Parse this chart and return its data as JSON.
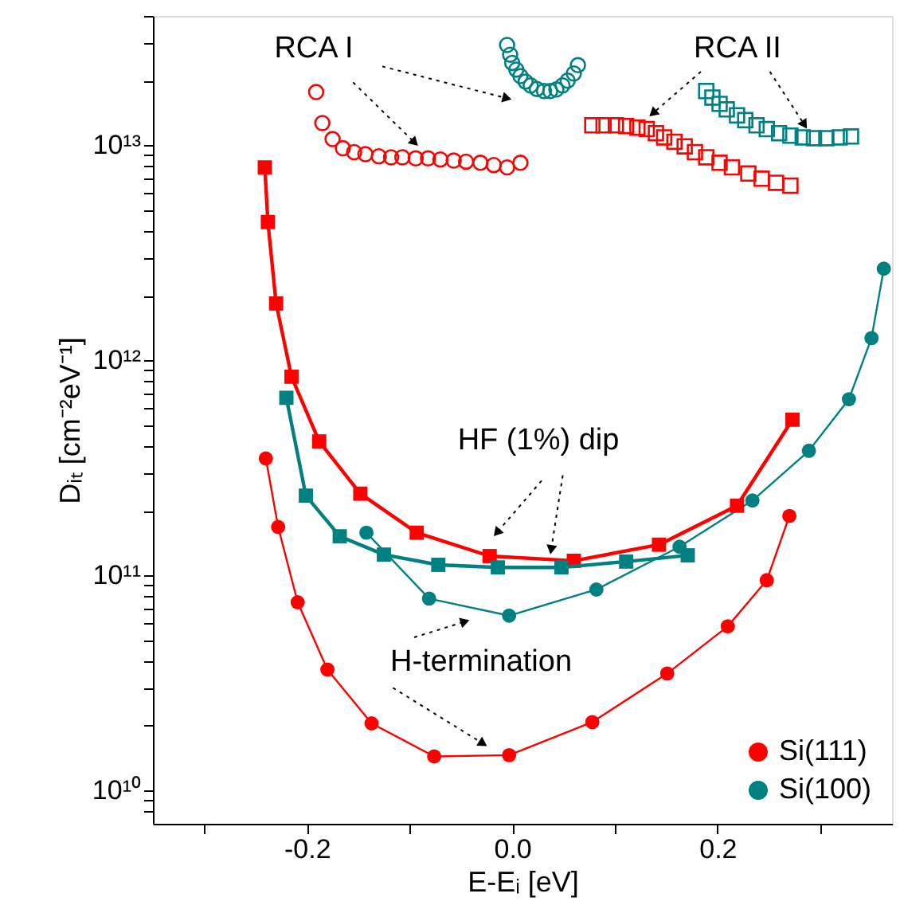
{
  "chart_data": {
    "type": "line",
    "xlabel": "E-Eᵢ [eV]",
    "ylabel": "Dᵢₜ [cm⁻²eV⁻¹]",
    "log": "y",
    "xlim": [
      -0.35,
      0.37
    ],
    "ylim": [
      7000000000.0,
      40000000000000.0
    ],
    "xticks": [
      {
        "value": -0.3,
        "label": null
      },
      -0.2,
      {
        "value": -0.1,
        "label": null
      },
      {
        "value": 0.0,
        "label": "0.0"
      },
      {
        "value": 0.1,
        "label": null
      },
      0.2,
      {
        "value": 0.3,
        "label": null
      }
    ],
    "yticks": [
      {
        "value": 8000000000.0,
        "label": null
      },
      {
        "value": 9000000000.0,
        "label": null
      },
      {
        "value": 10000000000.0,
        "label": "10¹⁰"
      },
      {
        "value": 20000000000.0,
        "label": null
      },
      {
        "value": 30000000000.0,
        "label": null
      },
      {
        "value": 40000000000.0,
        "label": null
      },
      {
        "value": 50000000000.0,
        "label": null
      },
      {
        "value": 60000000000.0,
        "label": null
      },
      {
        "value": 70000000000.0,
        "label": null
      },
      {
        "value": 80000000000.0,
        "label": null
      },
      {
        "value": 90000000000.0,
        "label": null
      },
      {
        "value": 100000000000.0,
        "label": "10¹¹"
      },
      {
        "value": 200000000000.0,
        "label": null
      },
      {
        "value": 300000000000.0,
        "label": null
      },
      {
        "value": 400000000000.0,
        "label": null
      },
      {
        "value": 500000000000.0,
        "label": null
      },
      {
        "value": 600000000000.0,
        "label": null
      },
      {
        "value": 700000000000.0,
        "label": null
      },
      {
        "value": 800000000000.0,
        "label": null
      },
      {
        "value": 900000000000.0,
        "label": null
      },
      {
        "value": 1000000000000.0,
        "label": "10¹²"
      },
      {
        "value": 2000000000000.0,
        "label": null
      },
      {
        "value": 3000000000000.0,
        "label": null
      },
      {
        "value": 4000000000000.0,
        "label": null
      },
      {
        "value": 5000000000000.0,
        "label": null
      },
      {
        "value": 6000000000000.0,
        "label": null
      },
      {
        "value": 7000000000000.0,
        "label": null
      },
      {
        "value": 8000000000000.0,
        "label": null
      },
      {
        "value": 9000000000000.0,
        "label": null
      },
      {
        "value": 10000000000000.0,
        "label": "10¹³"
      },
      {
        "value": 20000000000000.0,
        "label": null
      },
      {
        "value": 30000000000000.0,
        "label": null
      },
      {
        "value": 40000000000000.0,
        "label": null
      }
    ],
    "grid": false,
    "legend": "bottom right",
    "series": [
      {
        "name": "Si(111)",
        "type": "line",
        "marker": "circle",
        "color": "#ff0000",
        "x": [
          -0.24,
          -0.228,
          -0.209,
          -0.18,
          -0.137,
          -0.076,
          -0.003,
          0.078,
          0.151,
          0.21,
          0.248,
          0.27
        ],
        "values": [
          350000000000.0,
          168000000000.0,
          75000000000.0,
          36500000000.0,
          20500000000.0,
          14400000000.0,
          14600000000.0,
          20800000000.0,
          35000000000.0,
          58000000000.0,
          95000000000.0,
          189000000000.0
        ]
      },
      {
        "name": "Si(100)",
        "marker": "circle",
        "color": "#008080",
        "x": [
          -0.142,
          -0.081,
          -0.003,
          0.082,
          0.163,
          0.234,
          0.289,
          0.328,
          0.35,
          0.362
        ],
        "values": [
          158000000000.0,
          78000000000.0,
          65000000000.0,
          86000000000.0,
          136000000000.0,
          223000000000.0,
          380000000000.0,
          660000000000.0,
          1270000000000.0,
          2670000000000.0
        ]
      },
      {
        "marker": "square",
        "color": "#ff0000",
        "x": [
          -0.241,
          -0.238,
          -0.23,
          -0.215,
          -0.188,
          -0.148,
          -0.093,
          -0.022,
          0.06,
          0.143,
          0.219,
          0.273
        ],
        "values": [
          7900000000000.0,
          4400000000000.0,
          1840000000000.0,
          840000000000.0,
          420000000000.0,
          240000000000.0,
          158000000000.0,
          123000000000.0,
          117000000000.0,
          139000000000.0,
          211000000000.0,
          530000000000.0
        ]
      },
      {
        "marker": "square",
        "color": "#008080",
        "x": [
          -0.22,
          -0.201,
          -0.168,
          -0.125,
          -0.072,
          -0.014,
          0.048,
          0.111,
          0.171
        ],
        "values": [
          670000000000.0,
          235000000000.0,
          152000000000.0,
          125000000000.0,
          112000000000.0,
          109000000000.0,
          109000000000.0,
          116000000000.0,
          124000000000.0
        ]
      },
      {
        "type": "scatter",
        "marker": "circle",
        "color": "#ff0000",
        "x": [
          -0.191,
          -0.185,
          -0.175,
          -0.165,
          -0.154,
          -0.143,
          -0.13,
          -0.118,
          -0.107,
          -0.094,
          -0.082,
          -0.07,
          -0.057,
          -0.045,
          -0.031,
          -0.018,
          -0.005,
          0.008
        ],
        "values": [
          17700000000000.0,
          12700000000000.0,
          10700000000000.0,
          9700000000000.0,
          9300000000000.0,
          9100000000000.0,
          8900000000000.0,
          8800000000000.0,
          8800000000000.0,
          8700000000000.0,
          8700000000000.0,
          8600000000000.0,
          8500000000000.0,
          8400000000000.0,
          8300000000000.0,
          8100000000000.0,
          7900000000000.0,
          8300000000000.0
        ]
      },
      {
        "type": "scatter",
        "marker": "circle",
        "color": "#008080",
        "x": [
          -0.005,
          -0.002,
          0.0,
          0.004,
          0.008,
          0.013,
          0.018,
          0.024,
          0.031,
          0.037,
          0.043,
          0.049,
          0.054,
          0.06,
          0.064
        ],
        "values": [
          29300000000000.0,
          26400000000000.0,
          24200000000000.0,
          22500000000000.0,
          21000000000000.0,
          19800000000000.0,
          19000000000000.0,
          18300000000000.0,
          17900000000000.0,
          17900000000000.0,
          18200000000000.0,
          19000000000000.0,
          20000000000000.0,
          21600000000000.0,
          23600000000000.0
        ]
      },
      {
        "type": "scatter",
        "marker": "square",
        "color": "#ff0000",
        "x": [
          0.078,
          0.089,
          0.101,
          0.111,
          0.122,
          0.131,
          0.14,
          0.148,
          0.158,
          0.168,
          0.178,
          0.189,
          0.202,
          0.214,
          0.23,
          0.243,
          0.257,
          0.271
        ],
        "values": [
          12400000000000.0,
          12400000000000.0,
          12400000000000.0,
          12300000000000.0,
          12100000000000.0,
          11900000000000.0,
          11400000000000.0,
          10900000000000.0,
          10400000000000.0,
          9900000000000.0,
          9300000000000.0,
          8800000000000.0,
          8300000000000.0,
          7900000000000.0,
          7400000000000.0,
          7000000000000.0,
          6700000000000.0,
          6500000000000.0
        ]
      },
      {
        "type": "scatter",
        "marker": "square",
        "color": "#008080",
        "x": [
          0.189,
          0.195,
          0.202,
          0.209,
          0.219,
          0.227,
          0.238,
          0.248,
          0.26,
          0.271,
          0.283,
          0.294,
          0.306,
          0.319,
          0.33
        ],
        "values": [
          17900000000000.0,
          16700000000000.0,
          15600000000000.0,
          14700000000000.0,
          13800000000000.0,
          13100000000000.0,
          12400000000000.0,
          11900000000000.0,
          11400000000000.0,
          11100000000000.0,
          10900000000000.0,
          10800000000000.0,
          10800000000000.0,
          10900000000000.0,
          11000000000000.0
        ]
      }
    ],
    "annotations": [
      {
        "text": "RCA I",
        "x": -0.095,
        "y": 10300000000000.0
      },
      {
        "text": "RCA II",
        "x": 0.137,
        "y": 14100000000000.0
      },
      {
        "text": "HF (1%) dip",
        "x": -0.015,
        "y": 158000000000.0
      },
      {
        "text": "H-termination",
        "x": -0.046,
        "y": 61000000000.0
      }
    ]
  }
}
